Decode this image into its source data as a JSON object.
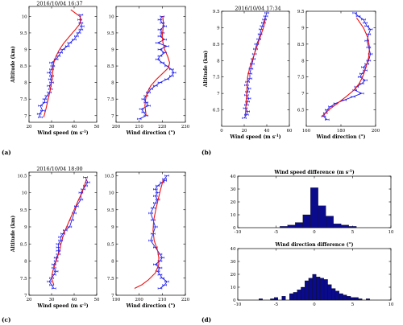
{
  "panels": {
    "a": {
      "label": "(a)",
      "title": "2016/10/04 16:37"
    },
    "b": {
      "label": "(b)",
      "title": "2016/10/04 17:34"
    },
    "c": {
      "label": "(c)",
      "title": "2016/10/04 18:00"
    },
    "d": {
      "label": "(d)"
    }
  },
  "colors": {
    "measured": "#1a1aee",
    "fitted": "#ee1111",
    "bars": "#0a0a8c"
  },
  "chart_data": [
    {
      "id": "a-speed",
      "type": "line",
      "title": "2016/10/04 16:37",
      "xlabel": "Wind speed (m s-1)",
      "ylabel": "Altitude (km)",
      "xlim": [
        20,
        50
      ],
      "ylim": [
        6.8,
        10.3
      ],
      "xticks": [
        20,
        30,
        40,
        50
      ],
      "yticks": [
        7,
        7.5,
        8,
        8.5,
        9,
        9.5,
        10
      ],
      "series": [
        {
          "role": "measured",
          "x": [
            25,
            24.5,
            26,
            25,
            27,
            27,
            28,
            29,
            29.5,
            29,
            30,
            29.5,
            30,
            29,
            30,
            30.5,
            30,
            32,
            33,
            34,
            35,
            37,
            38,
            40,
            41,
            42,
            43,
            43.5,
            43,
            42.5,
            43
          ],
          "y": [
            6.95,
            7.05,
            7.15,
            7.3,
            7.4,
            7.5,
            7.6,
            7.7,
            7.8,
            7.9,
            8.0,
            8.1,
            8.2,
            8.3,
            8.4,
            8.5,
            8.6,
            8.7,
            8.8,
            8.9,
            9.0,
            9.1,
            9.2,
            9.3,
            9.4,
            9.5,
            9.6,
            9.7,
            9.8,
            9.9,
            10.05
          ]
        },
        {
          "role": "fitted",
          "x": [
            26.5,
            27.5,
            28.5,
            29.5,
            30.2,
            30.6,
            31,
            32,
            33.5,
            35.5,
            38,
            40.5,
            42.3,
            43,
            42.5,
            40.5,
            38.5
          ],
          "y": [
            6.95,
            7.2,
            7.5,
            7.8,
            8.1,
            8.4,
            8.6,
            8.8,
            9.0,
            9.2,
            9.4,
            9.6,
            9.75,
            9.9,
            10.0,
            10.1,
            10.2
          ]
        }
      ]
    },
    {
      "id": "a-direction",
      "type": "line",
      "xlabel": "Wind direction (°)",
      "xlim": [
        200,
        230
      ],
      "ylim": [
        6.8,
        10.3
      ],
      "xticks": [
        200,
        210,
        220,
        230
      ],
      "yticks": [
        7,
        7.5,
        8,
        8.5,
        9,
        9.5,
        10
      ],
      "series": [
        {
          "role": "measured",
          "x": [
            210,
            213,
            212,
            211,
            214,
            213,
            212,
            213,
            214,
            215,
            217,
            219,
            222,
            224,
            225,
            224,
            222,
            220,
            218,
            219,
            221,
            219,
            222,
            218,
            221,
            219,
            220,
            219,
            221,
            220,
            219,
            220
          ],
          "y": [
            6.9,
            7.0,
            7.1,
            7.2,
            7.3,
            7.4,
            7.5,
            7.6,
            7.7,
            7.8,
            7.9,
            8.0,
            8.1,
            8.2,
            8.3,
            8.4,
            8.5,
            8.6,
            8.7,
            8.8,
            8.9,
            9.0,
            9.1,
            9.2,
            9.3,
            9.4,
            9.5,
            9.6,
            9.7,
            9.8,
            9.9,
            10.0
          ]
        },
        {
          "role": "fitted",
          "x": [
            213,
            212.5,
            212.8,
            213.5,
            215,
            217.5,
            220.5,
            222.7,
            223.2,
            222.3,
            221,
            220.3,
            220,
            220.3,
            220.5,
            220.2
          ],
          "y": [
            7.0,
            7.3,
            7.5,
            7.7,
            7.9,
            8.1,
            8.3,
            8.45,
            8.6,
            8.8,
            9.0,
            9.2,
            9.4,
            9.6,
            9.8,
            10.0
          ]
        }
      ]
    },
    {
      "id": "b-speed",
      "type": "line",
      "title": "2016/10/04 17:34",
      "xlabel": "Wind speed (m s-1)",
      "ylabel": "Altitude (km)",
      "xlim": [
        0,
        60
      ],
      "ylim": [
        6.0,
        9.5
      ],
      "xticks": [
        0,
        20,
        40,
        60
      ],
      "yticks": [
        6.5,
        7,
        7.5,
        8,
        8.5,
        9,
        9.5
      ],
      "series": [
        {
          "role": "measured",
          "x": [
            20,
            22,
            23,
            21,
            22,
            23,
            24,
            22,
            23,
            24,
            22,
            23,
            25,
            25,
            26,
            27,
            28,
            29,
            30,
            31,
            33,
            34,
            35,
            36,
            37,
            38,
            39,
            40
          ],
          "y": [
            6.25,
            6.35,
            6.45,
            6.55,
            6.65,
            6.75,
            6.85,
            6.95,
            7.05,
            7.15,
            7.25,
            7.35,
            7.45,
            7.6,
            7.75,
            7.9,
            8.05,
            8.2,
            8.35,
            8.5,
            8.65,
            8.8,
            8.95,
            9.05,
            9.15,
            9.25,
            9.35,
            9.45
          ]
        },
        {
          "role": "fitted",
          "x": [
            21,
            21.5,
            22,
            22.5,
            23,
            25,
            28,
            31,
            34,
            37,
            39
          ],
          "y": [
            6.3,
            6.6,
            6.9,
            7.2,
            7.5,
            7.8,
            8.1,
            8.4,
            8.7,
            9.0,
            9.3
          ]
        }
      ]
    },
    {
      "id": "b-direction",
      "type": "line",
      "xlabel": "Wind direction (°)",
      "xlim": [
        160,
        200
      ],
      "ylim": [
        6.0,
        9.5
      ],
      "xticks": [
        160,
        180,
        200
      ],
      "yticks": [
        6.5,
        7,
        7.5,
        8,
        8.5,
        9,
        9.5
      ],
      "series": [
        {
          "role": "measured",
          "x": [
            172,
            170,
            171,
            172,
            174,
            177,
            182,
            187,
            192,
            188,
            189,
            192,
            194,
            191,
            192,
            194,
            193,
            195,
            196,
            197,
            196,
            195,
            196,
            197,
            195,
            194,
            193,
            190,
            188
          ],
          "y": [
            6.2,
            6.3,
            6.4,
            6.5,
            6.6,
            6.7,
            6.8,
            6.9,
            7.0,
            7.1,
            7.2,
            7.3,
            7.4,
            7.5,
            7.6,
            7.7,
            7.8,
            7.9,
            8.0,
            8.2,
            8.4,
            8.6,
            8.8,
            8.95,
            9.05,
            9.15,
            9.25,
            9.35,
            9.45
          ]
        },
        {
          "role": "fitted",
          "x": [
            169,
            173,
            178,
            183,
            187.5,
            190.5,
            192.5,
            194.5,
            196,
            196.5,
            195.5,
            193,
            189
          ],
          "y": [
            6.3,
            6.5,
            6.7,
            6.9,
            7.1,
            7.3,
            7.5,
            7.8,
            8.1,
            8.4,
            8.7,
            9.0,
            9.3
          ]
        }
      ]
    },
    {
      "id": "c-speed",
      "type": "line",
      "title": "2016/10/04 18:00",
      "xlabel": "Wind speed (m s-1)",
      "ylabel": "Altitude (km)",
      "xlim": [
        20,
        50
      ],
      "ylim": [
        7.0,
        10.6
      ],
      "xticks": [
        20,
        30,
        40,
        50
      ],
      "yticks": [
        7,
        7.5,
        8,
        8.5,
        9,
        9.5,
        10,
        10.5
      ],
      "series": [
        {
          "role": "measured",
          "x": [
            31,
            30,
            29,
            30,
            31,
            32,
            31,
            31,
            32,
            32,
            33,
            33,
            33,
            33,
            34,
            34,
            35,
            36,
            38,
            39,
            40,
            41,
            43,
            43,
            44,
            45,
            46,
            45
          ],
          "y": [
            7.2,
            7.3,
            7.4,
            7.5,
            7.6,
            7.7,
            7.8,
            7.9,
            8.0,
            8.1,
            8.2,
            8.3,
            8.4,
            8.5,
            8.6,
            8.7,
            8.8,
            8.9,
            9.0,
            9.2,
            9.4,
            9.6,
            9.8,
            10.0,
            10.1,
            10.2,
            10.3,
            10.45
          ]
        },
        {
          "role": "fitted",
          "x": [
            31,
            30,
            30.5,
            31.5,
            32.5,
            33.5,
            34.5,
            36,
            38,
            40,
            42,
            43.5,
            44.5,
            45.5
          ],
          "y": [
            7.3,
            7.5,
            7.7,
            7.9,
            8.1,
            8.3,
            8.6,
            8.9,
            9.2,
            9.5,
            9.8,
            10.0,
            10.2,
            10.4
          ]
        }
      ]
    },
    {
      "id": "c-direction",
      "type": "line",
      "xlabel": "Wind direction (°)",
      "xlim": [
        190,
        220
      ],
      "ylim": [
        7.0,
        10.6
      ],
      "xticks": [
        190,
        200,
        210,
        220
      ],
      "yticks": [
        7,
        7.5,
        8,
        8.5,
        9,
        9.5,
        10,
        10.5
      ],
      "series": [
        {
          "role": "measured",
          "x": [
            209,
            211,
            212,
            210,
            209,
            208,
            209,
            207,
            209,
            210,
            209,
            207,
            205,
            206,
            207,
            206,
            205,
            206,
            207,
            208,
            207,
            208,
            207,
            208,
            210,
            211,
            211,
            212
          ],
          "y": [
            7.2,
            7.3,
            7.4,
            7.5,
            7.6,
            7.7,
            7.8,
            7.9,
            8.0,
            8.1,
            8.2,
            8.4,
            8.6,
            8.8,
            9.0,
            9.2,
            9.4,
            9.55,
            9.7,
            9.8,
            9.9,
            10.0,
            10.1,
            10.2,
            10.3,
            10.35,
            10.4,
            10.5
          ]
        },
        {
          "role": "fitted",
          "x": [
            198,
            201,
            204,
            207,
            208.5,
            208.5,
            208,
            206.5,
            206,
            206.3,
            207.2,
            208.2,
            209.3,
            210.5
          ],
          "y": [
            7.2,
            7.3,
            7.45,
            7.65,
            7.9,
            8.1,
            8.3,
            8.6,
            8.9,
            9.2,
            9.5,
            9.8,
            10.1,
            10.4
          ]
        }
      ]
    },
    {
      "id": "d-speed-diff",
      "type": "bar",
      "title": "Wind speed difference (m s-1)",
      "xlim": [
        -10,
        10
      ],
      "ylim": [
        0,
        40
      ],
      "xticks": [
        -10,
        -5,
        0,
        5,
        10
      ],
      "yticks": [
        0,
        10,
        20,
        30,
        40
      ],
      "bin_centers": [
        -4,
        -3,
        -2,
        -1,
        0,
        1,
        2,
        3,
        4,
        5
      ],
      "counts": [
        1,
        2,
        4,
        10,
        31,
        17,
        9,
        3,
        2,
        1
      ]
    },
    {
      "id": "d-direction-diff",
      "type": "bar",
      "title": "Wind direction difference (°)",
      "xlim": [
        -10,
        10
      ],
      "ylim": [
        0,
        40
      ],
      "xticks": [
        -10,
        -5,
        0,
        5,
        10
      ],
      "yticks": [
        0,
        10,
        20,
        30,
        40
      ],
      "bin_centers": [
        -7,
        -5.5,
        -5,
        -4,
        -3,
        -2.5,
        -2,
        -1.5,
        -1,
        -0.5,
        0,
        0.5,
        1,
        1.5,
        2,
        2.5,
        3,
        3.5,
        4,
        4.5,
        5,
        5.5,
        6,
        7
      ],
      "counts": [
        1,
        1,
        2,
        3,
        5,
        6,
        8,
        10,
        15,
        17,
        20,
        18,
        17,
        16,
        12,
        9,
        7,
        5,
        4,
        3,
        2,
        2,
        1,
        1
      ]
    }
  ]
}
